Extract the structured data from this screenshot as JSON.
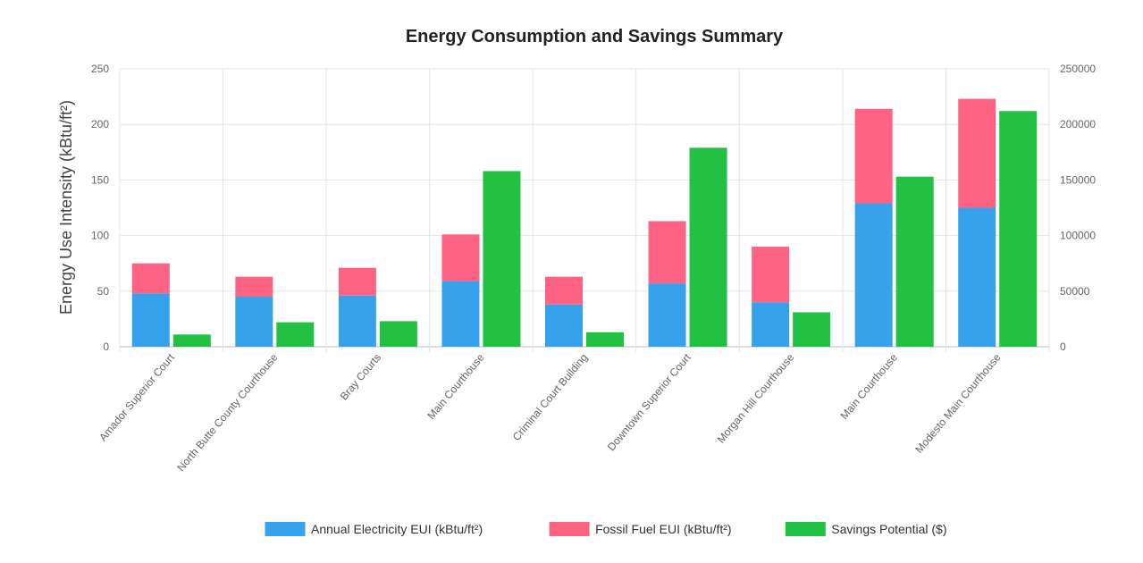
{
  "chart_data": {
    "type": "bar",
    "title": "Energy Consumption and Savings Summary",
    "categories": [
      "Amador Superior Court",
      "North Butte County Courthouse",
      "Bray Courts",
      "Main Courthouse",
      "Criminal Court Building",
      "Downtown Superior Court",
      "Morgan Hill Courthouse",
      "Main Courthouse",
      "Modesto Main Courthouse"
    ],
    "series": [
      {
        "name": "Annual Electricity EUI (kBtu/ft²)",
        "stack": "eui",
        "axis": "left",
        "color": "#36a2eb",
        "values": [
          48,
          45,
          46,
          59,
          38,
          57,
          40,
          129,
          125
        ]
      },
      {
        "name": "Fossil Fuel EUI (kBtu/ft²)",
        "stack": "eui",
        "axis": "left",
        "color": "#ff6384",
        "values": [
          27,
          18,
          25,
          42,
          25,
          56,
          50,
          85,
          98
        ]
      },
      {
        "name": "Savings Potential ($)",
        "stack": "savings",
        "axis": "right",
        "color": "#22c043",
        "values": [
          11000,
          22000,
          23000,
          158000,
          13000,
          179000,
          31000,
          153000,
          212000
        ]
      }
    ],
    "ylabel": "Energy Use Intensity (kBtu/ft²)",
    "ylim": [
      0,
      250
    ],
    "y_ticks": [
      0,
      50,
      100,
      150,
      200,
      250
    ],
    "y2lim": [
      0,
      250000
    ],
    "y2_ticks": [
      0,
      50000,
      100000,
      150000,
      200000,
      250000
    ],
    "grid": true,
    "legend_position": "bottom"
  }
}
